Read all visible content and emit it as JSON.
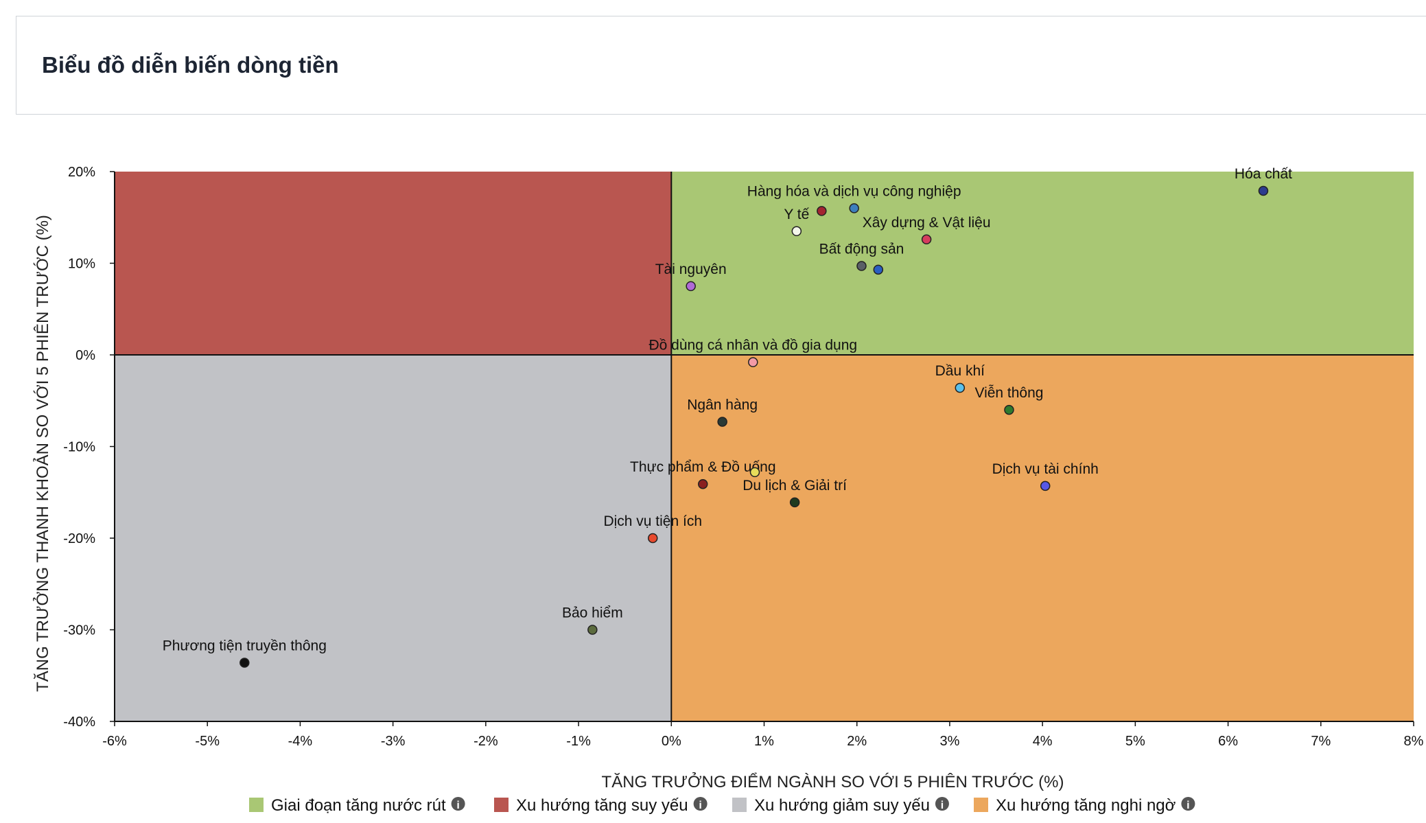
{
  "page": {
    "title": "Biểu đồ diễn biến dòng tiền"
  },
  "chart_data": {
    "type": "scatter",
    "xlabel": "TĂNG TRƯỞNG ĐIỂM NGÀNH SO VỚI 5 PHIÊN TRƯỚC (%)",
    "ylabel": "TĂNG TRƯỞNG THANH KHOẢN SO VỚI 5 PHIÊN TRƯỚC (%)",
    "xlim": [
      -6,
      8
    ],
    "ylim": [
      -40,
      20
    ],
    "xticks": [
      -6,
      -5,
      -4,
      -3,
      -2,
      -1,
      0,
      1,
      2,
      3,
      4,
      5,
      6,
      7,
      8
    ],
    "yticks": [
      20,
      10,
      0,
      -10,
      -20,
      -30,
      -40
    ],
    "tick_suffix": "%",
    "quadrants": [
      {
        "name": "Giai đoạn tăng nước rút",
        "region": "x>0,y>0",
        "color": "#a9c774"
      },
      {
        "name": "Xu hướng tăng suy yếu",
        "region": "x<0,y>0",
        "color": "#b95650"
      },
      {
        "name": "Xu hướng giảm suy yếu",
        "region": "x<0,y<0",
        "color": "#c1c2c6"
      },
      {
        "name": "Xu hướng tăng nghi ngờ",
        "region": "x>0,y<0",
        "color": "#eca75d"
      }
    ],
    "legend_position": "bottom",
    "legend_icon": "info-icon",
    "points": [
      {
        "label": "Hóa chất",
        "x": 6.38,
        "y": 17.9,
        "color": "#2d3b8f"
      },
      {
        "label": "Hàng hóa và dịch vụ công nghiệp",
        "x": 1.97,
        "y": 16.0,
        "color": "#3d7fbd"
      },
      {
        "label": "Y tế",
        "x": 1.35,
        "y": 13.5,
        "color": "#f4f7ea"
      },
      {
        "label": "",
        "x": 1.62,
        "y": 15.7,
        "color": "#a32431"
      },
      {
        "label": "Xây dựng & Vật liệu",
        "x": 2.75,
        "y": 12.6,
        "color": "#d63c5e"
      },
      {
        "label": "Bất động sản",
        "x": 2.05,
        "y": 9.7,
        "color": "#5a5f66"
      },
      {
        "label": "",
        "x": 2.23,
        "y": 9.3,
        "color": "#2a5ec2"
      },
      {
        "label": "Tài nguyên",
        "x": 0.21,
        "y": 7.5,
        "color": "#b06ad6"
      },
      {
        "label": "Đồ dùng cá nhân và đồ gia dụng",
        "x": 0.88,
        "y": -0.8,
        "color": "#f29aa6"
      },
      {
        "label": "Dầu khí",
        "x": 3.11,
        "y": -3.6,
        "color": "#5bc0ea"
      },
      {
        "label": "Viễn thông",
        "x": 3.64,
        "y": -6.0,
        "color": "#2e7a2e"
      },
      {
        "label": "Ngân hàng",
        "x": 0.55,
        "y": -7.3,
        "color": "#2b3a35"
      },
      {
        "label": "Thực phẩm & Đồ uống",
        "x": 0.34,
        "y": -14.1,
        "color": "#8a2020"
      },
      {
        "label": "",
        "x": 0.9,
        "y": -12.8,
        "color": "#e8dd5a"
      },
      {
        "label": "Du lịch & Giải trí",
        "x": 1.33,
        "y": -16.1,
        "color": "#1f3b1f"
      },
      {
        "label": "Dịch vụ tài chính",
        "x": 4.03,
        "y": -14.3,
        "color": "#5858e6"
      },
      {
        "label": "Dịch vụ tiện ích",
        "x": -0.2,
        "y": -20.0,
        "color": "#e84a2e"
      },
      {
        "label": "Bảo hiểm",
        "x": -0.85,
        "y": -30.0,
        "color": "#5c6b3e"
      },
      {
        "label": "Phương tiện truyền thông",
        "x": -4.6,
        "y": -33.6,
        "color": "#111111"
      }
    ]
  }
}
